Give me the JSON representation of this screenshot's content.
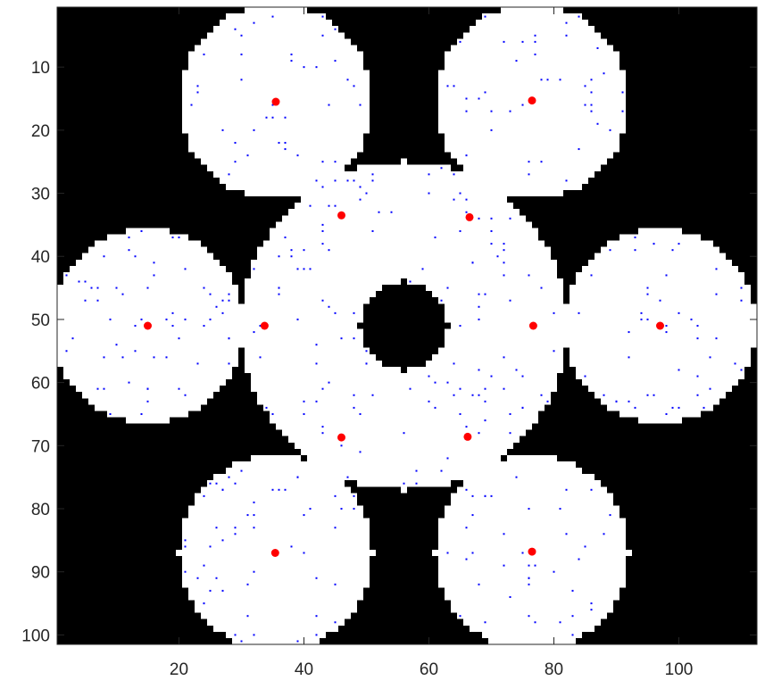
{
  "chart_data": {
    "type": "scatter",
    "title": "",
    "xlabel": "",
    "ylabel": "",
    "xlim": [
      0.5,
      112.5
    ],
    "ylim": [
      0.5,
      101.5
    ],
    "y_reversed": true,
    "grid": false,
    "legend": "none",
    "x_ticks": [
      20,
      40,
      60,
      80,
      100
    ],
    "y_ticks": [
      10,
      20,
      30,
      40,
      50,
      60,
      70,
      80,
      90,
      100
    ],
    "background_color": "#000000",
    "region_color": "#ffffff",
    "region": {
      "description": "binary occupancy image; free region is the union of the lobes and central body with a hole",
      "center": [
        56,
        51
      ],
      "central_body_radius": 26,
      "hole_radius": 7,
      "lobes": [
        {
          "center": [
            35.5,
            15.5
          ],
          "radius": 15.5
        },
        {
          "center": [
            76.5,
            15.5
          ],
          "radius": 15.5
        },
        {
          "center": [
            35.5,
            87
          ],
          "radius": 15.5
        },
        {
          "center": [
            76.5,
            87
          ],
          "radius": 15.5
        },
        {
          "center": [
            15,
            51
          ],
          "radius": 15.5
        },
        {
          "center": [
            97,
            51
          ],
          "radius": 15.5
        }
      ]
    },
    "series": [
      {
        "marker_color": "#ff0000",
        "marker": "filled-circle",
        "points": [
          [
            35.5,
            15.5
          ],
          [
            76.5,
            15.3
          ],
          [
            46,
            33.5
          ],
          [
            66.5,
            33.8
          ],
          [
            15,
            51
          ],
          [
            33.7,
            51
          ],
          [
            76.7,
            51
          ],
          [
            97,
            51
          ],
          [
            46,
            68.7
          ],
          [
            66.2,
            68.6
          ],
          [
            35.4,
            87
          ],
          [
            76.5,
            86.8
          ]
        ]
      },
      {
        "marker_color": "#0000ff",
        "marker": "small-dot",
        "count": 420
      }
    ]
  }
}
